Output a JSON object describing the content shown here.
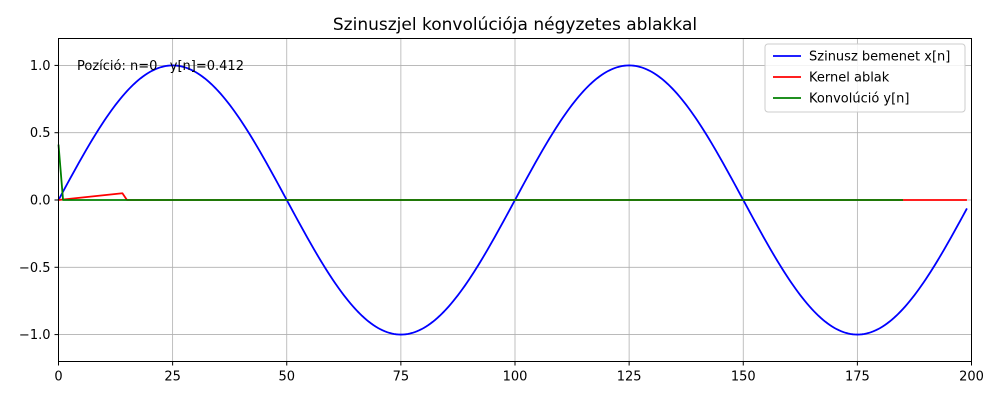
{
  "chart_data": {
    "type": "line",
    "title": "Szinuszjel konvolúciója négyzetes ablakkal",
    "xlabel": "",
    "ylabel": "",
    "xlim": [
      0,
      200
    ],
    "ylim": [
      -1.2,
      1.2
    ],
    "xticks": [
      0,
      25,
      50,
      75,
      100,
      125,
      150,
      175,
      200
    ],
    "xtick_labels": [
      "0",
      "25",
      "50",
      "75",
      "100",
      "125",
      "150",
      "175",
      "200"
    ],
    "yticks": [
      -1.0,
      -0.5,
      0.0,
      0.5,
      1.0
    ],
    "ytick_labels": [
      "−1.0",
      "−0.5",
      "0.0",
      "0.5",
      "1.0"
    ],
    "grid": true,
    "legend_position": "top-right",
    "annotation": "Pozíció: n=0   y[n]=0.412",
    "series": [
      {
        "name": "Szinusz bemenet x[n]",
        "color": "#0000ff",
        "kind": "sine",
        "x_range": [
          0,
          199
        ],
        "period": 100,
        "amplitude": 1
      },
      {
        "name": "Kernel ablak",
        "color": "#ff0000",
        "x": [
          0,
          14,
          15,
          199
        ],
        "y": [
          0,
          0.05,
          0,
          0
        ]
      },
      {
        "name": "Konvolúció y[n]",
        "color": "#008000",
        "x": [
          0,
          1,
          185
        ],
        "y": [
          0.412,
          0,
          0
        ]
      }
    ]
  }
}
